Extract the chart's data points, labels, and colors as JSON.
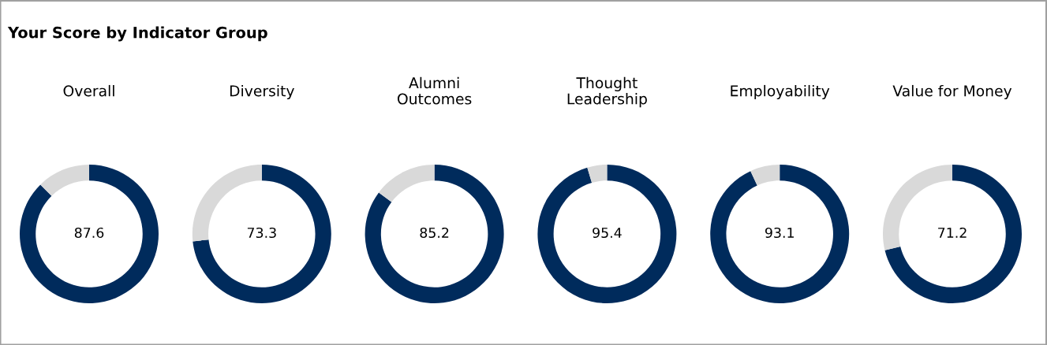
{
  "chart_data": [
    {
      "type": "other",
      "title": "Your Score by Indicator Group"
    },
    {
      "type": "donut",
      "title": "Overall",
      "categories": [
        null,
        null
      ],
      "values": [
        87.6,
        12.4
      ],
      "colors": [
        "#002b5c",
        "#d9d9d9"
      ],
      "annotations": [
        "87.6"
      ]
    },
    {
      "type": "donut",
      "title": "Diversity",
      "categories": [
        null,
        null
      ],
      "values": [
        73.3,
        26.7
      ],
      "colors": [
        "#002b5c",
        "#d9d9d9"
      ],
      "annotations": [
        "73.3"
      ]
    },
    {
      "type": "donut",
      "title": "Alumni\nOutcomes",
      "categories": [
        null,
        null
      ],
      "values": [
        85.2,
        14.8
      ],
      "colors": [
        "#002b5c",
        "#d9d9d9"
      ],
      "annotations": [
        "85.2"
      ]
    },
    {
      "type": "donut",
      "title": "Thought\nLeadership",
      "categories": [
        null,
        null
      ],
      "values": [
        95.4,
        4.6
      ],
      "colors": [
        "#002b5c",
        "#d9d9d9"
      ],
      "annotations": [
        "95.4"
      ]
    },
    {
      "type": "donut",
      "title": "Employability",
      "categories": [
        null,
        null
      ],
      "values": [
        93.1,
        6.9
      ],
      "colors": [
        "#002b5c",
        "#d9d9d9"
      ],
      "annotations": [
        "93.1"
      ]
    },
    {
      "type": "donut",
      "title": "Value for Money",
      "categories": [
        null,
        null
      ],
      "values": [
        71.2,
        28.8
      ],
      "colors": [
        "#002b5c",
        "#d9d9d9"
      ],
      "annotations": [
        "71.2"
      ]
    }
  ]
}
